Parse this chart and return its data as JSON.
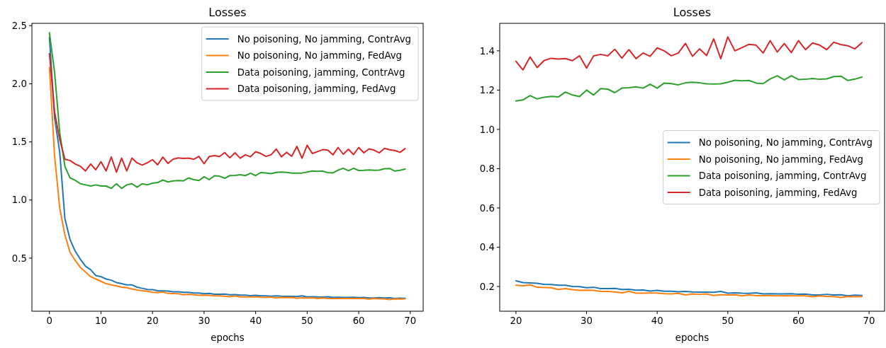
{
  "chart_data": [
    {
      "type": "line",
      "title": "Losses",
      "xlabel": "epochs",
      "xlim": [
        -3.4,
        72.5
      ],
      "ylim": [
        0.043,
        2.52
      ],
      "xticks": [
        0,
        10,
        20,
        30,
        40,
        50,
        60,
        70
      ],
      "yticks": [
        {
          "value": 0.5,
          "label": "0.5"
        },
        {
          "value": 1,
          "label": "1.0"
        },
        {
          "value": 1.5,
          "label": "1.5"
        },
        {
          "value": 2,
          "label": "2.0"
        },
        {
          "value": 2.5,
          "label": "2.5"
        }
      ],
      "legend": "top right",
      "x": [
        0,
        1,
        2,
        3,
        4,
        5,
        6,
        7,
        8,
        9,
        10,
        11,
        12,
        13,
        14,
        15,
        16,
        17,
        18,
        19,
        20,
        21,
        22,
        23,
        24,
        25,
        26,
        27,
        28,
        29,
        30,
        31,
        32,
        33,
        34,
        35,
        36,
        37,
        38,
        39,
        40,
        41,
        42,
        43,
        44,
        45,
        46,
        47,
        48,
        49,
        50,
        51,
        52,
        53,
        54,
        55,
        56,
        57,
        58,
        59,
        60,
        61,
        62,
        63,
        64,
        65,
        66,
        67,
        68,
        69
      ],
      "series": [
        {
          "name": "No poisoning, No jamming, ContrAvg",
          "color": "#1f77b4",
          "values": [
            2.4,
            1.71,
            1.41,
            0.84,
            0.66,
            0.56,
            0.49,
            0.43,
            0.4,
            0.35,
            0.34,
            0.32,
            0.31,
            0.29,
            0.28,
            0.27,
            0.27,
            0.25,
            0.24,
            0.23,
            0.229,
            0.22,
            0.218,
            0.216,
            0.211,
            0.21,
            0.206,
            0.206,
            0.2,
            0.199,
            0.194,
            0.196,
            0.189,
            0.189,
            0.19,
            0.185,
            0.186,
            0.181,
            0.182,
            0.177,
            0.18,
            0.176,
            0.176,
            0.173,
            0.175,
            0.172,
            0.171,
            0.171,
            0.17,
            0.175,
            0.166,
            0.168,
            0.166,
            0.165,
            0.168,
            0.162,
            0.163,
            0.162,
            0.162,
            0.163,
            0.16,
            0.161,
            0.157,
            0.157,
            0.16,
            0.157,
            0.158,
            0.152,
            0.156,
            0.154
          ]
        },
        {
          "name": "No poisoning, No jamming, FedAvg",
          "color": "#ff7f0e",
          "values": [
            2.14,
            1.38,
            0.93,
            0.7,
            0.55,
            0.48,
            0.42,
            0.38,
            0.34,
            0.32,
            0.3,
            0.28,
            0.27,
            0.26,
            0.25,
            0.245,
            0.235,
            0.225,
            0.22,
            0.215,
            0.206,
            0.204,
            0.208,
            0.196,
            0.195,
            0.194,
            0.185,
            0.189,
            0.184,
            0.18,
            0.181,
            0.18,
            0.175,
            0.175,
            0.172,
            0.168,
            0.175,
            0.166,
            0.166,
            0.167,
            0.167,
            0.163,
            0.162,
            0.165,
            0.157,
            0.162,
            0.16,
            0.162,
            0.154,
            0.158,
            0.157,
            0.158,
            0.152,
            0.157,
            0.153,
            0.153,
            0.153,
            0.152,
            0.153,
            0.152,
            0.152,
            0.152,
            0.148,
            0.152,
            0.149,
            0.149,
            0.144,
            0.149,
            0.148,
            0.149
          ]
        },
        {
          "name": "Data poisoning, jamming, ContrAvg",
          "color": "#2ca02c",
          "values": [
            2.44,
            2.1,
            1.58,
            1.29,
            1.19,
            1.17,
            1.14,
            1.13,
            1.12,
            1.13,
            1.12,
            1.12,
            1.1,
            1.14,
            1.1,
            1.13,
            1.14,
            1.11,
            1.14,
            1.13,
            1.145,
            1.15,
            1.172,
            1.155,
            1.164,
            1.168,
            1.165,
            1.19,
            1.175,
            1.167,
            1.2,
            1.175,
            1.208,
            1.205,
            1.187,
            1.21,
            1.212,
            1.217,
            1.21,
            1.23,
            1.21,
            1.236,
            1.233,
            1.227,
            1.237,
            1.24,
            1.237,
            1.232,
            1.231,
            1.232,
            1.24,
            1.25,
            1.247,
            1.249,
            1.236,
            1.233,
            1.257,
            1.273,
            1.252,
            1.273,
            1.254,
            1.255,
            1.259,
            1.255,
            1.257,
            1.269,
            1.271,
            1.249,
            1.256,
            1.266
          ]
        },
        {
          "name": "Data poisoning, jamming, FedAvg",
          "color": "#d62728",
          "values": [
            2.26,
            1.76,
            1.52,
            1.35,
            1.34,
            1.31,
            1.29,
            1.25,
            1.31,
            1.26,
            1.33,
            1.25,
            1.37,
            1.24,
            1.36,
            1.25,
            1.36,
            1.32,
            1.3,
            1.32,
            1.347,
            1.303,
            1.369,
            1.315,
            1.351,
            1.362,
            1.358,
            1.361,
            1.35,
            1.375,
            1.312,
            1.374,
            1.382,
            1.374,
            1.408,
            1.363,
            1.406,
            1.36,
            1.389,
            1.372,
            1.415,
            1.4,
            1.375,
            1.389,
            1.438,
            1.372,
            1.41,
            1.376,
            1.461,
            1.36,
            1.471,
            1.4,
            1.416,
            1.433,
            1.429,
            1.389,
            1.452,
            1.394,
            1.437,
            1.391,
            1.452,
            1.406,
            1.44,
            1.429,
            1.406,
            1.444,
            1.432,
            1.426,
            1.41,
            1.442
          ]
        }
      ]
    },
    {
      "type": "line",
      "title": "Losses",
      "xlabel": "epochs",
      "xlim": [
        17.7,
        72.2
      ],
      "ylim": [
        0.074,
        1.54
      ],
      "xticks": [
        20,
        30,
        40,
        50,
        60,
        70
      ],
      "yticks": [
        {
          "value": 0.2,
          "label": "0.2"
        },
        {
          "value": 0.4,
          "label": "0.4"
        },
        {
          "value": 0.6,
          "label": "0.6"
        },
        {
          "value": 0.8,
          "label": "0.8"
        },
        {
          "value": 1,
          "label": "1.0"
        },
        {
          "value": 1.2,
          "label": "1.2"
        },
        {
          "value": 1.4,
          "label": "1.4"
        }
      ],
      "legend": "right",
      "x": [
        20,
        21,
        22,
        23,
        24,
        25,
        26,
        27,
        28,
        29,
        30,
        31,
        32,
        33,
        34,
        35,
        36,
        37,
        38,
        39,
        40,
        41,
        42,
        43,
        44,
        45,
        46,
        47,
        48,
        49,
        50,
        51,
        52,
        53,
        54,
        55,
        56,
        57,
        58,
        59,
        60,
        61,
        62,
        63,
        64,
        65,
        66,
        67,
        68,
        69
      ],
      "series": [
        {
          "name": "No poisoning, No jamming, ContrAvg",
          "color": "#1f77b4",
          "values": [
            0.229,
            0.22,
            0.218,
            0.216,
            0.211,
            0.21,
            0.206,
            0.206,
            0.2,
            0.199,
            0.194,
            0.196,
            0.189,
            0.189,
            0.19,
            0.185,
            0.186,
            0.181,
            0.182,
            0.177,
            0.18,
            0.176,
            0.176,
            0.173,
            0.175,
            0.172,
            0.171,
            0.171,
            0.17,
            0.175,
            0.166,
            0.168,
            0.166,
            0.165,
            0.168,
            0.162,
            0.163,
            0.162,
            0.162,
            0.163,
            0.16,
            0.161,
            0.157,
            0.157,
            0.16,
            0.157,
            0.158,
            0.152,
            0.156,
            0.154
          ]
        },
        {
          "name": "No poisoning, No jamming, FedAvg",
          "color": "#ff7f0e",
          "values": [
            0.206,
            0.204,
            0.208,
            0.196,
            0.195,
            0.194,
            0.185,
            0.189,
            0.184,
            0.18,
            0.181,
            0.18,
            0.175,
            0.175,
            0.172,
            0.168,
            0.175,
            0.166,
            0.166,
            0.167,
            0.167,
            0.163,
            0.162,
            0.165,
            0.157,
            0.162,
            0.16,
            0.162,
            0.154,
            0.158,
            0.157,
            0.158,
            0.152,
            0.157,
            0.153,
            0.153,
            0.153,
            0.152,
            0.153,
            0.152,
            0.152,
            0.152,
            0.148,
            0.152,
            0.149,
            0.149,
            0.144,
            0.149,
            0.148,
            0.149
          ]
        },
        {
          "name": "Data poisoning, jamming, ContrAvg",
          "color": "#2ca02c",
          "values": [
            1.145,
            1.15,
            1.172,
            1.155,
            1.164,
            1.168,
            1.165,
            1.19,
            1.175,
            1.167,
            1.2,
            1.175,
            1.208,
            1.205,
            1.187,
            1.21,
            1.212,
            1.217,
            1.21,
            1.23,
            1.21,
            1.236,
            1.233,
            1.227,
            1.237,
            1.24,
            1.237,
            1.232,
            1.231,
            1.232,
            1.24,
            1.25,
            1.247,
            1.249,
            1.236,
            1.233,
            1.257,
            1.273,
            1.252,
            1.273,
            1.254,
            1.255,
            1.259,
            1.255,
            1.257,
            1.269,
            1.271,
            1.249,
            1.256,
            1.266
          ]
        },
        {
          "name": "Data poisoning, jamming, FedAvg",
          "color": "#d62728",
          "values": [
            1.347,
            1.303,
            1.369,
            1.315,
            1.351,
            1.362,
            1.358,
            1.361,
            1.35,
            1.375,
            1.312,
            1.374,
            1.382,
            1.374,
            1.408,
            1.363,
            1.406,
            1.36,
            1.389,
            1.372,
            1.415,
            1.4,
            1.375,
            1.389,
            1.438,
            1.372,
            1.41,
            1.376,
            1.461,
            1.36,
            1.471,
            1.4,
            1.416,
            1.433,
            1.429,
            1.389,
            1.452,
            1.394,
            1.437,
            1.391,
            1.452,
            1.406,
            1.44,
            1.429,
            1.406,
            1.444,
            1.432,
            1.426,
            1.41,
            1.442
          ]
        }
      ]
    }
  ]
}
